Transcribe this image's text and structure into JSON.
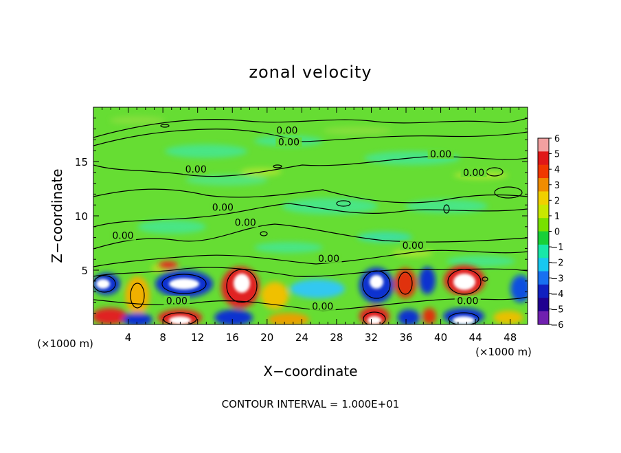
{
  "chart_data": {
    "type": "heatmap",
    "title": "zonal velocity",
    "xlabel": "X−coordinate",
    "ylabel": "Z−coordinate",
    "x_unit_left": "(×1000 m)",
    "x_unit_right": "(×1000 m)",
    "footer": "CONTOUR INTERVAL = 1.000E+01",
    "xlim": [
      0,
      50
    ],
    "ylim": [
      0,
      20
    ],
    "x_ticks": [
      4,
      8,
      12,
      16,
      20,
      24,
      28,
      32,
      36,
      40,
      44,
      48
    ],
    "y_ticks": [
      5,
      10,
      15
    ],
    "colorbar": {
      "ticks": [
        "6",
        "5",
        "4",
        "3",
        "2",
        "1",
        "0",
        "−1",
        "−2",
        "−3",
        "−4",
        "−5",
        "−6"
      ],
      "colors": [
        "#f2a0a0",
        "#e01818",
        "#f03800",
        "#f08c00",
        "#f0d000",
        "#c8e800",
        "#78e000",
        "#18d038",
        "#18e8a8",
        "#18c8f0",
        "#1870f0",
        "#1020c0",
        "#200090",
        "#7020b0"
      ]
    },
    "background_color": "#66dd33",
    "contour_labels": [
      {
        "text": "0.00",
        "x": 22.3,
        "y": 17.7
      },
      {
        "text": "0.00",
        "x": 22.5,
        "y": 16.6
      },
      {
        "text": "0.00",
        "x": 40.0,
        "y": 15.5
      },
      {
        "text": "0.00",
        "x": 43.8,
        "y": 13.8
      },
      {
        "text": "0.00",
        "x": 11.8,
        "y": 14.1
      },
      {
        "text": "0.00",
        "x": 14.9,
        "y": 10.6
      },
      {
        "text": "0.00",
        "x": 17.5,
        "y": 9.2
      },
      {
        "text": "0.00",
        "x": 3.4,
        "y": 8.0
      },
      {
        "text": "0.00",
        "x": 36.8,
        "y": 7.1
      },
      {
        "text": "0.00",
        "x": 27.1,
        "y": 5.9
      },
      {
        "text": "0.00",
        "x": 9.6,
        "y": 2.0
      },
      {
        "text": "0.00",
        "x": 26.4,
        "y": 1.5
      },
      {
        "text": "0.00",
        "x": 43.1,
        "y": 2.0
      }
    ]
  }
}
